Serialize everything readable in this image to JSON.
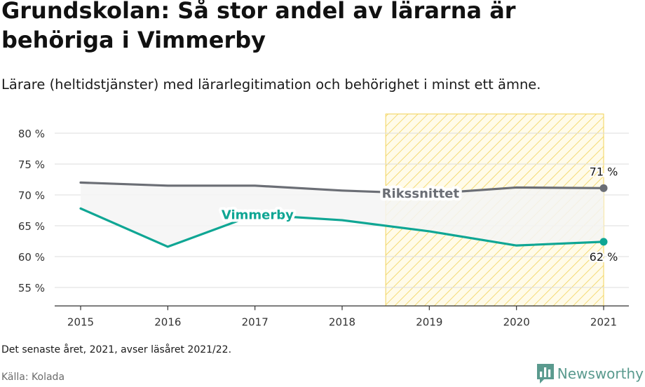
{
  "title": "Grundskolan: Så stor andel av lärarna är behöriga i Vimmerby",
  "subtitle": "Lärare (heltidstjänster) med lärarlegitimation och behörighet i minst ett ämne.",
  "note": "Det senaste året, 2021, avser läsåret 2021/22.",
  "source": "Källa: Kolada",
  "brand": {
    "name": "Newsworthy",
    "logo_icon": "bar-chart-speech-bubble-icon"
  },
  "colors": {
    "rikssnittet": "#6b6e75",
    "vimmerby": "#0fa694",
    "highlight_hatch": "#f2d35a",
    "area_fill": "#f4f4f4",
    "grid": "#dddddd",
    "brand": "#5a9a8e"
  },
  "chart_data": {
    "type": "line",
    "x": [
      2015,
      2016,
      2017,
      2018,
      2019,
      2020,
      2021
    ],
    "ylim": [
      52,
      83
    ],
    "yticks": [
      55,
      60,
      65,
      70,
      75,
      80
    ],
    "ytick_labels": [
      "55 %",
      "60 %",
      "65 %",
      "70 %",
      "75 %",
      "80 %"
    ],
    "xtick_labels": [
      "2015",
      "2016",
      "2017",
      "2018",
      "2019",
      "2020",
      "2021"
    ],
    "grid": true,
    "highlight_range": [
      2018.5,
      2021
    ],
    "fill_between_series": true,
    "series": [
      {
        "name": "Rikssnittet",
        "key": "rikssnittet",
        "values": [
          72.0,
          71.5,
          71.5,
          70.7,
          70.2,
          71.2,
          71.1
        ],
        "label_at": 2018.9,
        "end_label": "71 %",
        "end_label_position": "above"
      },
      {
        "name": "Vimmerby",
        "key": "vimmerby",
        "values": [
          67.8,
          61.6,
          66.8,
          65.9,
          64.1,
          61.8,
          62.4
        ],
        "label_at": 2017.03,
        "end_label": "62 %",
        "end_label_position": "below"
      }
    ]
  }
}
